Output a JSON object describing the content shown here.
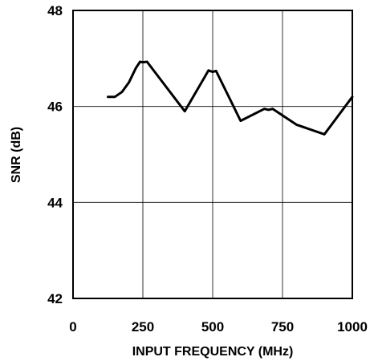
{
  "chart_data": {
    "type": "line",
    "title": "",
    "xlabel": "INPUT FREQUENCY (MHz)",
    "ylabel": "SNR (dB)",
    "xlim": [
      0,
      1000
    ],
    "ylim": [
      42,
      48
    ],
    "xticks": [
      0,
      250,
      500,
      750,
      1000
    ],
    "xtick_labels": [
      "0",
      "250",
      "500",
      "750",
      "1000"
    ],
    "yticks": [
      42,
      44,
      46,
      48
    ],
    "ytick_labels": [
      "42",
      "44",
      "46",
      "48"
    ],
    "grid": true,
    "line_color": "#000000",
    "series": [
      {
        "x": [
          125,
          150,
          175,
          200,
          225,
          240,
          250,
          265,
          400,
          485,
          500,
          512,
          600,
          685,
          700,
          715,
          800,
          900,
          1000
        ],
        "y": [
          46.2,
          46.2,
          46.3,
          46.5,
          46.8,
          46.93,
          46.92,
          46.93,
          45.9,
          46.75,
          46.72,
          46.74,
          45.7,
          45.95,
          45.93,
          45.95,
          45.62,
          45.42,
          46.2
        ]
      }
    ]
  }
}
